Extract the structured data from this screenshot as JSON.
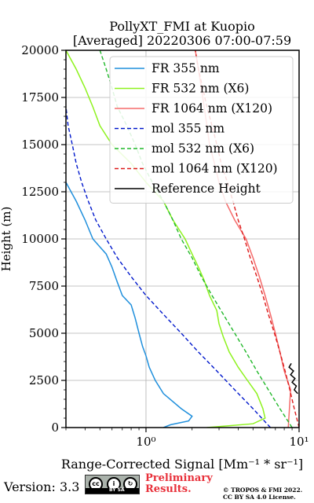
{
  "chart_data": {
    "type": "line",
    "title": "PollyXT_FMI at Kuopio",
    "subtitle": "[Averaged] 20220306 07:00-07:59",
    "xlabel": "Range-Corrected Signal [Mm⁻¹ * sr⁻¹]",
    "ylabel": "Height (m)",
    "xscale": "log",
    "xlim": [
      0.3,
      10
    ],
    "ylim": [
      0,
      20000
    ],
    "x_ticks": [
      1,
      10
    ],
    "x_tick_labels": [
      "10⁰",
      "10¹"
    ],
    "y_ticks": [
      0,
      2500,
      5000,
      7500,
      10000,
      12500,
      15000,
      17500,
      20000
    ],
    "y_tick_labels": [
      "0",
      "2500",
      "5000",
      "7500",
      "10000",
      "12500",
      "15000",
      "17500",
      "20000"
    ],
    "grid": true,
    "legend_position": "top-right",
    "series": [
      {
        "name": "FR 355 nm",
        "color": "#1f8fdc",
        "style": "solid",
        "points": [
          [
            1.3,
            0
          ],
          [
            1.45,
            150
          ],
          [
            1.9,
            350
          ],
          [
            2.0,
            600
          ],
          [
            1.7,
            1000
          ],
          [
            1.3,
            1800
          ],
          [
            1.15,
            2500
          ],
          [
            1.05,
            3200
          ],
          [
            1.0,
            3800
          ],
          [
            0.95,
            4300
          ],
          [
            0.9,
            5000
          ],
          [
            0.85,
            5800
          ],
          [
            0.8,
            6500
          ],
          [
            0.7,
            7000
          ],
          [
            0.65,
            7700
          ],
          [
            0.6,
            8500
          ],
          [
            0.55,
            9200
          ],
          [
            0.45,
            10000
          ],
          [
            0.4,
            11000
          ],
          [
            0.35,
            12000
          ],
          [
            0.3,
            13000
          ]
        ]
      },
      {
        "name": "FR 532 nm (X6)",
        "color": "#8ef21e",
        "style": "solid",
        "points": [
          [
            2.5,
            0
          ],
          [
            5.0,
            200
          ],
          [
            6.0,
            500
          ],
          [
            5.8,
            1000
          ],
          [
            5.3,
            1800
          ],
          [
            4.6,
            2500
          ],
          [
            4.0,
            3200
          ],
          [
            3.5,
            4000
          ],
          [
            3.2,
            4800
          ],
          [
            3.0,
            5500
          ],
          [
            2.9,
            6200
          ],
          [
            2.6,
            7000
          ],
          [
            2.4,
            7800
          ],
          [
            2.2,
            8500
          ],
          [
            2.0,
            9200
          ],
          [
            1.8,
            10000
          ],
          [
            1.5,
            11000
          ],
          [
            1.3,
            12000
          ],
          [
            1.0,
            13000
          ],
          [
            0.8,
            14000
          ],
          [
            0.6,
            15000
          ],
          [
            0.5,
            16000
          ],
          [
            0.45,
            17000
          ],
          [
            0.4,
            18000
          ],
          [
            0.35,
            19000
          ],
          [
            0.3,
            20000
          ]
        ]
      },
      {
        "name": "FR 1064 nm (X120)",
        "color": "#f56b6b",
        "style": "solid",
        "points": [
          [
            8.5,
            0
          ],
          [
            8.8,
            2000
          ],
          [
            8.0,
            3000
          ],
          [
            7.5,
            4000
          ],
          [
            7.0,
            5000
          ],
          [
            6.5,
            6000
          ],
          [
            6.0,
            7000
          ],
          [
            5.5,
            8000
          ],
          [
            5.0,
            9000
          ],
          [
            4.5,
            10000
          ],
          [
            3.8,
            11000
          ],
          [
            3.3,
            12000
          ],
          [
            3.0,
            13000
          ],
          [
            2.8,
            14000
          ],
          [
            2.6,
            15000
          ],
          [
            2.5,
            16000
          ],
          [
            2.4,
            17000
          ],
          [
            2.3,
            18000
          ],
          [
            2.2,
            19000
          ],
          [
            2.1,
            20000
          ]
        ]
      },
      {
        "name": "mol 355 nm",
        "color": "#0018cc",
        "style": "dashed",
        "points": [
          [
            6.5,
            0
          ],
          [
            5.0,
            1000
          ],
          [
            3.8,
            2000
          ],
          [
            2.9,
            3000
          ],
          [
            2.2,
            4000
          ],
          [
            1.7,
            5000
          ],
          [
            1.3,
            6000
          ],
          [
            1.0,
            7000
          ],
          [
            0.8,
            8000
          ],
          [
            0.65,
            9000
          ],
          [
            0.55,
            10000
          ],
          [
            0.47,
            11000
          ],
          [
            0.42,
            12000
          ],
          [
            0.38,
            13000
          ],
          [
            0.35,
            14000
          ],
          [
            0.33,
            15000
          ],
          [
            0.31,
            16000
          ],
          [
            0.3,
            17000
          ]
        ]
      },
      {
        "name": "mol 532 nm (X6)",
        "color": "#21b82a",
        "style": "dashed",
        "points": [
          [
            9.0,
            0
          ],
          [
            7.5,
            1000
          ],
          [
            6.3,
            2000
          ],
          [
            5.3,
            3000
          ],
          [
            4.5,
            4000
          ],
          [
            3.8,
            5000
          ],
          [
            3.2,
            6000
          ],
          [
            2.7,
            7000
          ],
          [
            2.3,
            8000
          ],
          [
            2.0,
            9000
          ],
          [
            1.7,
            10000
          ],
          [
            1.5,
            11000
          ],
          [
            1.3,
            12000
          ],
          [
            1.1,
            13000
          ],
          [
            0.95,
            14000
          ],
          [
            0.85,
            15000
          ],
          [
            0.75,
            16000
          ],
          [
            0.65,
            17000
          ],
          [
            0.6,
            18000
          ],
          [
            0.55,
            19000
          ],
          [
            0.5,
            20000
          ]
        ]
      },
      {
        "name": "mol 1064 nm (X120)",
        "color": "#dd1a1a",
        "style": "dashed",
        "points": [
          [
            10.0,
            0
          ],
          [
            9.3,
            1000
          ],
          [
            8.7,
            2000
          ],
          [
            8.1,
            3000
          ],
          [
            7.5,
            4000
          ],
          [
            6.9,
            5000
          ],
          [
            6.3,
            6000
          ],
          [
            5.8,
            7000
          ],
          [
            5.3,
            8000
          ],
          [
            4.8,
            9000
          ],
          [
            4.4,
            10000
          ],
          [
            4.0,
            11000
          ],
          [
            3.7,
            12000
          ],
          [
            3.4,
            13000
          ],
          [
            3.1,
            14000
          ],
          [
            2.9,
            15000
          ],
          [
            2.7,
            16000
          ],
          [
            2.5,
            17000
          ],
          [
            2.35,
            18000
          ],
          [
            2.2,
            19000
          ],
          [
            2.1,
            20000
          ]
        ]
      },
      {
        "name": "Reference Height",
        "color": "#000000",
        "style": "solid",
        "points": [
          [
            9.8,
            1800
          ],
          [
            9.3,
            2000
          ],
          [
            9.6,
            2200
          ],
          [
            9.0,
            2400
          ],
          [
            9.4,
            2600
          ],
          [
            8.8,
            2800
          ],
          [
            9.2,
            3000
          ],
          [
            8.6,
            3200
          ],
          [
            8.9,
            3400
          ]
        ]
      }
    ]
  },
  "footer": {
    "version": "Version: 3.3",
    "license_badge": "BY SA",
    "preliminary_line1": "Preliminary",
    "preliminary_line2": "Results.",
    "copyright_line1": "© TROPOS & FMI 2022.",
    "copyright_line2": "CC BY SA 4.0 License."
  }
}
